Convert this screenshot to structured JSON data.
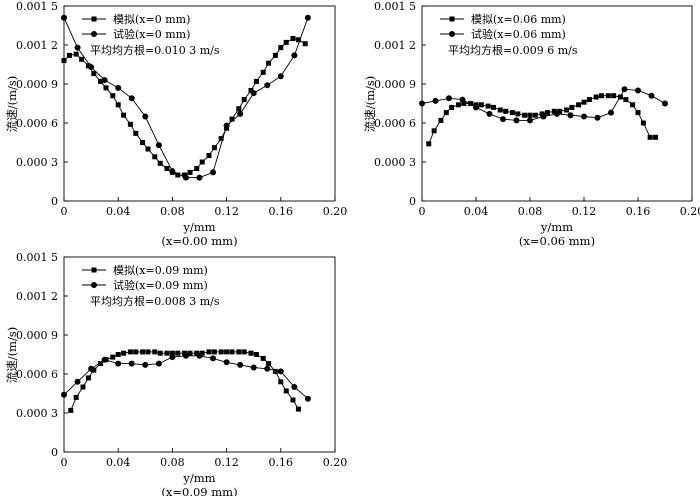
{
  "chart_data": [
    {
      "type": "line",
      "xlabel": "y/mm",
      "xlabel_sub": "(x=0.00 mm)",
      "ylabel": "流速/(m/s)",
      "xlim": [
        0,
        0.2
      ],
      "ylim": [
        0,
        0.0015
      ],
      "x_ticks": [
        "0",
        "0.04",
        "0.08",
        "0.12",
        "0.16",
        "0.20"
      ],
      "y_ticks": [
        "0",
        "0.000 3",
        "0.000 6",
        "0.000 9",
        "0.001 2",
        "0.001 5"
      ],
      "legend_position": "top-left",
      "annotation": "平均均方根=0.010 3 m/s",
      "series": [
        {
          "name": "模拟(x=0 mm)",
          "marker": "square",
          "x": [
            0,
            0.004,
            0.009,
            0.013,
            0.018,
            0.022,
            0.027,
            0.031,
            0.036,
            0.04,
            0.044,
            0.049,
            0.053,
            0.058,
            0.062,
            0.067,
            0.071,
            0.076,
            0.08,
            0.084,
            0.089,
            0.093,
            0.098,
            0.102,
            0.107,
            0.111,
            0.116,
            0.12,
            0.124,
            0.129,
            0.133,
            0.138,
            0.142,
            0.147,
            0.151,
            0.156,
            0.16,
            0.164,
            0.169,
            0.173,
            0.178
          ],
          "y": [
            0.00108,
            0.00112,
            0.00113,
            0.00109,
            0.00104,
            0.00098,
            0.00092,
            0.00087,
            0.00081,
            0.00074,
            0.00066,
            0.00059,
            0.00052,
            0.00045,
            0.0004,
            0.00034,
            0.00029,
            0.00025,
            0.00022,
            0.0002,
            0.0002,
            0.00022,
            0.00025,
            0.0003,
            0.00035,
            0.00041,
            0.00048,
            0.00056,
            0.00063,
            0.00071,
            0.00078,
            0.00085,
            0.00092,
            0.00099,
            0.00106,
            0.00112,
            0.00118,
            0.00122,
            0.00125,
            0.00124,
            0.00121
          ]
        },
        {
          "name": "试验(x=0 mm)",
          "marker": "circle",
          "x": [
            0,
            0.01,
            0.02,
            0.03,
            0.04,
            0.05,
            0.06,
            0.07,
            0.08,
            0.09,
            0.1,
            0.11,
            0.12,
            0.13,
            0.14,
            0.15,
            0.16,
            0.17,
            0.18
          ],
          "y": [
            0.00141,
            0.00118,
            0.00103,
            0.00093,
            0.00087,
            0.00079,
            0.00065,
            0.00043,
            0.00023,
            0.00018,
            0.00018,
            0.00022,
            0.00058,
            0.00067,
            0.00083,
            0.00089,
            0.00096,
            0.00112,
            0.00141
          ]
        }
      ]
    },
    {
      "type": "line",
      "xlabel": "y/mm",
      "xlabel_sub": "(x=0.06 mm)",
      "ylabel": "流速/(m/s)",
      "xlim": [
        0,
        0.2
      ],
      "ylim": [
        0,
        0.0015
      ],
      "x_ticks": [
        "0",
        "0.04",
        "0.08",
        "0.12",
        "0.16",
        "0.20"
      ],
      "y_ticks": [
        "0",
        "0.000 3",
        "0.000 6",
        "0.000 9",
        "0.001 2",
        "0.001 5"
      ],
      "legend_position": "top-left",
      "annotation": "平均均方根=0.009 6 m/s",
      "series": [
        {
          "name": "模拟(x=0.06 mm)",
          "marker": "square",
          "x": [
            0.005,
            0.009,
            0.014,
            0.018,
            0.022,
            0.027,
            0.031,
            0.036,
            0.04,
            0.044,
            0.049,
            0.053,
            0.058,
            0.062,
            0.067,
            0.071,
            0.076,
            0.08,
            0.084,
            0.089,
            0.093,
            0.098,
            0.102,
            0.107,
            0.111,
            0.116,
            0.12,
            0.124,
            0.129,
            0.133,
            0.138,
            0.142,
            0.147,
            0.151,
            0.156,
            0.16,
            0.164,
            0.169,
            0.173
          ],
          "y": [
            0.00044,
            0.00054,
            0.00062,
            0.00068,
            0.00072,
            0.00074,
            0.00075,
            0.00075,
            0.00074,
            0.00074,
            0.00073,
            0.00072,
            0.0007,
            0.00069,
            0.00068,
            0.00067,
            0.00066,
            0.00066,
            0.00066,
            0.00067,
            0.00068,
            0.00069,
            0.00069,
            0.0007,
            0.00072,
            0.00074,
            0.00076,
            0.00078,
            0.0008,
            0.00081,
            0.00081,
            0.00081,
            0.0008,
            0.00078,
            0.00074,
            0.00068,
            0.0006,
            0.00049,
            0.00049
          ]
        },
        {
          "name": "试验(x=0.06 mm)",
          "marker": "circle",
          "x": [
            0,
            0.01,
            0.02,
            0.03,
            0.04,
            0.05,
            0.06,
            0.07,
            0.08,
            0.09,
            0.1,
            0.11,
            0.12,
            0.13,
            0.14,
            0.15,
            0.16,
            0.17,
            0.18
          ],
          "y": [
            0.00075,
            0.00077,
            0.00079,
            0.00078,
            0.00072,
            0.00067,
            0.00063,
            0.00062,
            0.00062,
            0.00065,
            0.00067,
            0.00066,
            0.00065,
            0.00064,
            0.00068,
            0.00086,
            0.00085,
            0.00081,
            0.00075
          ]
        }
      ]
    },
    {
      "type": "line",
      "xlabel": "y/mm",
      "xlabel_sub": "(x=0.09 mm)",
      "ylabel": "流速/(m/s)",
      "xlim": [
        0,
        0.2
      ],
      "ylim": [
        0,
        0.0015
      ],
      "x_ticks": [
        "0",
        "0.04",
        "0.08",
        "0.12",
        "0.16",
        "0.20"
      ],
      "y_ticks": [
        "0",
        "0.000 3",
        "0.000 6",
        "0.000 9",
        "0.001 2",
        "0.001 5"
      ],
      "legend_position": "top-left",
      "annotation": "平均均方根=0.008 3 m/s",
      "series": [
        {
          "name": "模拟(x=0.09 mm)",
          "marker": "square",
          "x": [
            0.005,
            0.009,
            0.014,
            0.018,
            0.022,
            0.027,
            0.031,
            0.036,
            0.04,
            0.044,
            0.049,
            0.053,
            0.058,
            0.062,
            0.067,
            0.071,
            0.076,
            0.08,
            0.084,
            0.089,
            0.093,
            0.098,
            0.102,
            0.107,
            0.111,
            0.116,
            0.12,
            0.124,
            0.129,
            0.133,
            0.138,
            0.142,
            0.147,
            0.151,
            0.156,
            0.16,
            0.164,
            0.169,
            0.173
          ],
          "y": [
            0.00032,
            0.00042,
            0.0005,
            0.00057,
            0.00063,
            0.00068,
            0.00071,
            0.00073,
            0.00075,
            0.00076,
            0.00077,
            0.00077,
            0.00077,
            0.00077,
            0.00077,
            0.00076,
            0.00076,
            0.00076,
            0.00076,
            0.00076,
            0.00076,
            0.00076,
            0.00076,
            0.00077,
            0.00077,
            0.00077,
            0.00077,
            0.00077,
            0.00077,
            0.00077,
            0.00076,
            0.00075,
            0.00072,
            0.00068,
            0.00062,
            0.00054,
            0.00047,
            0.0004,
            0.00033
          ]
        },
        {
          "name": "试验(x=0.09 mm)",
          "marker": "circle",
          "x": [
            0,
            0.01,
            0.02,
            0.03,
            0.04,
            0.05,
            0.06,
            0.07,
            0.08,
            0.09,
            0.1,
            0.11,
            0.12,
            0.13,
            0.14,
            0.15,
            0.16,
            0.17,
            0.18
          ],
          "y": [
            0.00044,
            0.00054,
            0.00064,
            0.00071,
            0.00068,
            0.00068,
            0.00067,
            0.00068,
            0.00073,
            0.00074,
            0.00074,
            0.00072,
            0.00069,
            0.00067,
            0.00065,
            0.00064,
            0.00062,
            0.0005,
            0.00041
          ]
        }
      ]
    }
  ]
}
